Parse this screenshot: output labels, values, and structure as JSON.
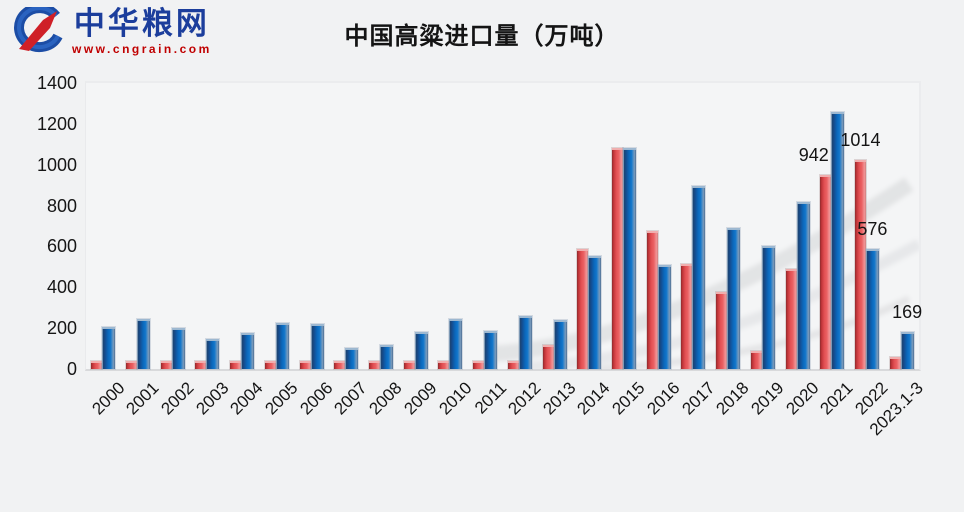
{
  "header": {
    "logo": {
      "name": "中华粮网",
      "url": "www.cngrain.com"
    }
  },
  "chart_data": {
    "type": "bar",
    "title": "中国高粱进口量（万吨）",
    "categories": [
      "2000",
      "2001",
      "2002",
      "2003",
      "2004",
      "2005",
      "2006",
      "2007",
      "2008",
      "2009",
      "2010",
      "2011",
      "2012",
      "2013",
      "2014",
      "2015",
      "2016",
      "2017",
      "2018",
      "2019",
      "2020",
      "2021",
      "2022",
      "2023.1-3"
    ],
    "series": [
      {
        "name": "red",
        "color_key": "red",
        "values": [
          10,
          10,
          10,
          10,
          10,
          10,
          10,
          8,
          10,
          8,
          12,
          10,
          15,
          108,
          578,
          1070,
          665,
          506,
          365,
          79,
          481,
          942,
          1014,
          50
        ],
        "data_labels": {
          "21": {
            "text": "942",
            "dx": -12
          },
          "22": {
            "text": "1014",
            "dx": 0
          }
        }
      },
      {
        "name": "blue",
        "color_key": "blue",
        "values": [
          195,
          236,
          191,
          136,
          168,
          215,
          211,
          91,
          108,
          172,
          237,
          178,
          252,
          232,
          541,
          1073,
          500,
          886,
          682,
          593,
          808,
          1248,
          576,
          169
        ],
        "data_labels": {
          "22": {
            "text": "576",
            "dx": 0
          },
          "23": {
            "text": "169",
            "dx": 0
          }
        }
      }
    ],
    "xlabel": "",
    "ylabel": "",
    "ylim": [
      0,
      1400
    ],
    "ytick_step": 200,
    "grid": false,
    "legend": "none",
    "colors": {
      "red": "#e14f52",
      "blue": "#0f6ec0"
    }
  }
}
